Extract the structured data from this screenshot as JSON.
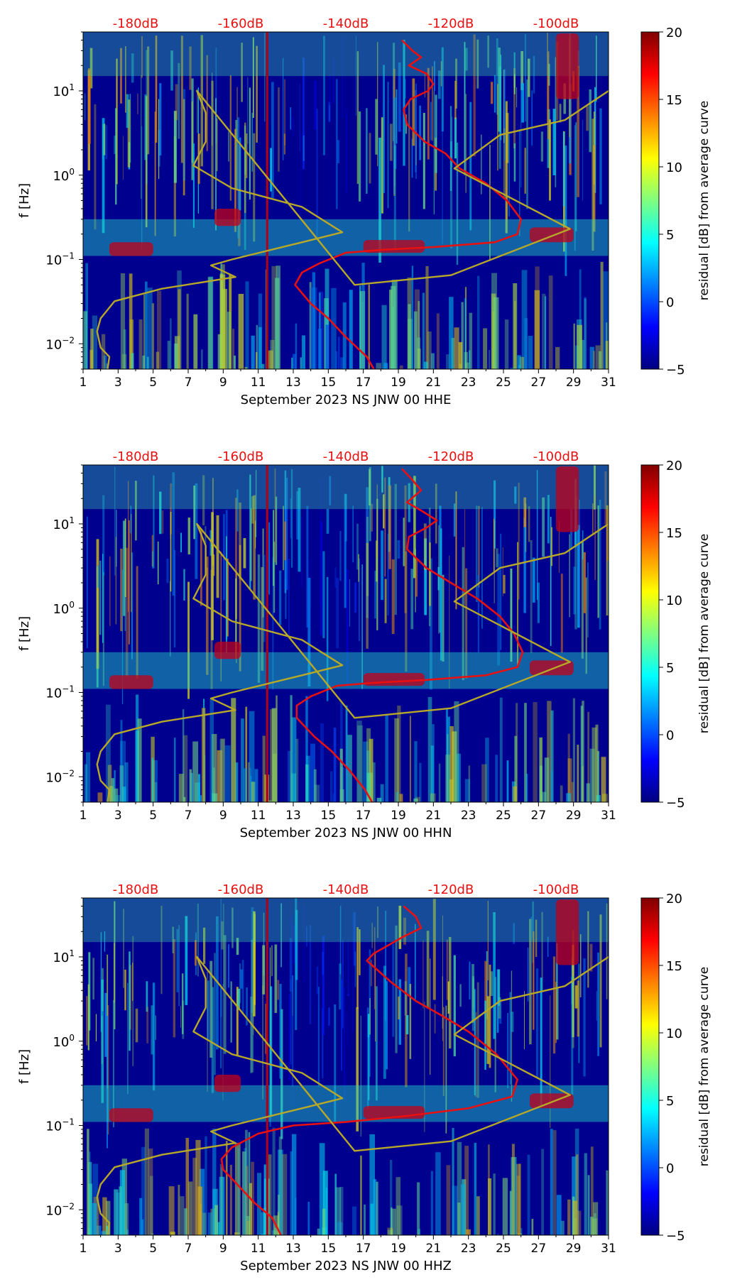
{
  "chart_data": [
    {
      "type": "heatmap",
      "title": "",
      "xlabel": "September 2023 NS JNW 00 HHE",
      "ylabel": "f [Hz]",
      "colorbar_label": "residual [dB] from average curve",
      "colorbar_range": [
        -5,
        20
      ],
      "colorbar_ticks": [
        "20",
        "15",
        "10",
        "5",
        "0",
        "−5"
      ],
      "colorbar_tick_values": [
        20,
        15,
        10,
        5,
        0,
        -5
      ],
      "colormap": "jet",
      "xlim": [
        1,
        31
      ],
      "ylim_hz": [
        0.005,
        50
      ],
      "y_scale": "log",
      "x_ticks": [
        "1",
        "3",
        "5",
        "7",
        "9",
        "11",
        "13",
        "15",
        "17",
        "19",
        "21",
        "23",
        "25",
        "27",
        "29",
        "31"
      ],
      "y_ticks": [
        {
          "base": "10",
          "exp": "1",
          "value": 10
        },
        {
          "base": "10",
          "exp": "0",
          "value": 1
        },
        {
          "base": "10",
          "exp": "−1",
          "value": 0.1
        },
        {
          "base": "10",
          "exp": "−2",
          "value": 0.01
        }
      ],
      "top_db_labels": [
        {
          "label": "-180dB",
          "day": 4
        },
        {
          "label": "-160dB",
          "day": 10
        },
        {
          "label": "-140dB",
          "day": 16
        },
        {
          "label": "-120dB",
          "day": 22
        },
        {
          "label": "-100dB",
          "day": 28
        }
      ],
      "overlay_curves": [
        {
          "name": "red",
          "color": "#e81010",
          "points": [
            [
              19.2,
              40
            ],
            [
              19.8,
              30
            ],
            [
              20.3,
              25
            ],
            [
              19.6,
              20
            ],
            [
              20.6,
              16
            ],
            [
              21.0,
              12
            ],
            [
              20.7,
              10
            ],
            [
              19.7,
              8
            ],
            [
              19.3,
              6
            ],
            [
              19.5,
              4
            ],
            [
              20.5,
              2.5
            ],
            [
              21.7,
              1.8
            ],
            [
              22.5,
              1.2
            ],
            [
              24.0,
              0.8
            ],
            [
              25.2,
              0.5
            ],
            [
              26.0,
              0.3
            ],
            [
              25.8,
              0.2
            ],
            [
              24.5,
              0.16
            ],
            [
              21.0,
              0.14
            ],
            [
              18.0,
              0.13
            ],
            [
              16.0,
              0.12
            ],
            [
              14.5,
              0.09
            ],
            [
              13.5,
              0.07
            ],
            [
              13.1,
              0.05
            ],
            [
              14.0,
              0.03
            ],
            [
              15.0,
              0.02
            ],
            [
              16.0,
              0.012
            ],
            [
              17.2,
              0.007
            ],
            [
              17.6,
              0.005
            ]
          ]
        },
        {
          "name": "gold",
          "color": "#b8a828",
          "points": [
            [
              2.4,
              0.005
            ],
            [
              2.5,
              0.007
            ],
            [
              2.0,
              0.009
            ],
            [
              1.8,
              0.014
            ],
            [
              2.0,
              0.02
            ],
            [
              2.8,
              0.032
            ],
            [
              5.5,
              0.045
            ],
            [
              9.7,
              0.062
            ],
            [
              8.3,
              0.085
            ],
            [
              9.5,
              0.1
            ],
            [
              13.5,
              0.16
            ],
            [
              15.8,
              0.21
            ],
            [
              13.5,
              0.42
            ],
            [
              9.5,
              0.7
            ],
            [
              7.3,
              1.3
            ],
            [
              8.0,
              2.5
            ],
            [
              8.0,
              5.5
            ],
            [
              7.5,
              10
            ],
            [
              16.5,
              0.05
            ],
            [
              22.0,
              0.065
            ],
            [
              28.8,
              0.23
            ],
            [
              22.2,
              1.2
            ],
            [
              24.8,
              3
            ],
            [
              28.5,
              4.5
            ],
            [
              31.0,
              10
            ]
          ]
        }
      ]
    },
    {
      "type": "heatmap",
      "title": "",
      "xlabel": "September 2023 NS JNW 00 HHN",
      "ylabel": "f [Hz]",
      "colorbar_label": "residual [dB] from average curve",
      "colorbar_range": [
        -5,
        20
      ],
      "colorbar_ticks": [
        "20",
        "15",
        "10",
        "5",
        "0",
        "−5"
      ],
      "colorbar_tick_values": [
        20,
        15,
        10,
        5,
        0,
        -5
      ],
      "colormap": "jet",
      "xlim": [
        1,
        31
      ],
      "ylim_hz": [
        0.005,
        50
      ],
      "y_scale": "log",
      "x_ticks": [
        "1",
        "3",
        "5",
        "7",
        "9",
        "11",
        "13",
        "15",
        "17",
        "19",
        "21",
        "23",
        "25",
        "27",
        "29",
        "31"
      ],
      "y_ticks": [
        {
          "base": "10",
          "exp": "1",
          "value": 10
        },
        {
          "base": "10",
          "exp": "0",
          "value": 1
        },
        {
          "base": "10",
          "exp": "−1",
          "value": 0.1
        },
        {
          "base": "10",
          "exp": "−2",
          "value": 0.01
        }
      ],
      "top_db_labels": [
        {
          "label": "-180dB",
          "day": 4
        },
        {
          "label": "-160dB",
          "day": 10
        },
        {
          "label": "-140dB",
          "day": 16
        },
        {
          "label": "-120dB",
          "day": 22
        },
        {
          "label": "-100dB",
          "day": 28
        }
      ],
      "overlay_curves": [
        {
          "name": "red",
          "color": "#e81010",
          "points": [
            [
              19.2,
              45
            ],
            [
              19.7,
              35
            ],
            [
              20.3,
              25
            ],
            [
              19.5,
              18
            ],
            [
              20.4,
              14
            ],
            [
              21.2,
              11
            ],
            [
              20.6,
              9
            ],
            [
              19.6,
              7
            ],
            [
              19.5,
              5
            ],
            [
              20.6,
              3
            ],
            [
              22.0,
              2
            ],
            [
              23.5,
              1.3
            ],
            [
              24.8,
              0.8
            ],
            [
              25.6,
              0.5
            ],
            [
              26.1,
              0.3
            ],
            [
              25.8,
              0.2
            ],
            [
              24.0,
              0.16
            ],
            [
              20.5,
              0.14
            ],
            [
              17.5,
              0.13
            ],
            [
              15.5,
              0.12
            ],
            [
              14.0,
              0.09
            ],
            [
              13.2,
              0.07
            ],
            [
              13.2,
              0.05
            ],
            [
              14.2,
              0.03
            ],
            [
              15.2,
              0.02
            ],
            [
              16.2,
              0.012
            ],
            [
              17.1,
              0.007
            ],
            [
              17.5,
              0.005
            ]
          ]
        },
        {
          "name": "gold",
          "color": "#b8a828",
          "points": [
            [
              2.4,
              0.005
            ],
            [
              2.5,
              0.007
            ],
            [
              2.0,
              0.009
            ],
            [
              1.8,
              0.014
            ],
            [
              2.0,
              0.02
            ],
            [
              2.8,
              0.032
            ],
            [
              5.5,
              0.045
            ],
            [
              9.7,
              0.062
            ],
            [
              8.3,
              0.085
            ],
            [
              9.5,
              0.1
            ],
            [
              13.5,
              0.16
            ],
            [
              15.8,
              0.21
            ],
            [
              13.5,
              0.42
            ],
            [
              9.5,
              0.7
            ],
            [
              7.3,
              1.3
            ],
            [
              8.0,
              2.5
            ],
            [
              8.0,
              5.5
            ],
            [
              7.5,
              10
            ],
            [
              16.5,
              0.05
            ],
            [
              22.0,
              0.065
            ],
            [
              28.8,
              0.23
            ],
            [
              22.2,
              1.2
            ],
            [
              24.8,
              3
            ],
            [
              28.5,
              4.5
            ],
            [
              31.0,
              10
            ]
          ]
        }
      ]
    },
    {
      "type": "heatmap",
      "title": "",
      "xlabel": "September 2023 NS JNW 00 HHZ",
      "ylabel": "f [Hz]",
      "colorbar_label": "residual [dB] from average curve",
      "colorbar_range": [
        -5,
        20
      ],
      "colorbar_ticks": [
        "20",
        "15",
        "10",
        "5",
        "0",
        "−5"
      ],
      "colorbar_tick_values": [
        20,
        15,
        10,
        5,
        0,
        -5
      ],
      "colormap": "jet",
      "xlim": [
        1,
        31
      ],
      "ylim_hz": [
        0.005,
        50
      ],
      "y_scale": "log",
      "x_ticks": [
        "1",
        "3",
        "5",
        "7",
        "9",
        "11",
        "13",
        "15",
        "17",
        "19",
        "21",
        "23",
        "25",
        "27",
        "29",
        "31"
      ],
      "y_ticks": [
        {
          "base": "10",
          "exp": "1",
          "value": 10
        },
        {
          "base": "10",
          "exp": "0",
          "value": 1
        },
        {
          "base": "10",
          "exp": "−1",
          "value": 0.1
        },
        {
          "base": "10",
          "exp": "−2",
          "value": 0.01
        }
      ],
      "top_db_labels": [
        {
          "label": "-180dB",
          "day": 4
        },
        {
          "label": "-160dB",
          "day": 10
        },
        {
          "label": "-140dB",
          "day": 16
        },
        {
          "label": "-120dB",
          "day": 22
        },
        {
          "label": "-100dB",
          "day": 28
        }
      ],
      "overlay_curves": [
        {
          "name": "red",
          "color": "#e81010",
          "points": [
            [
              19.3,
              40
            ],
            [
              20.0,
              30
            ],
            [
              20.3,
              22
            ],
            [
              19.2,
              17
            ],
            [
              18.5,
              14
            ],
            [
              17.6,
              11
            ],
            [
              17.2,
              9
            ],
            [
              17.8,
              7
            ],
            [
              18.6,
              5
            ],
            [
              20.0,
              3
            ],
            [
              21.5,
              2
            ],
            [
              23.0,
              1.3
            ],
            [
              24.6,
              0.7
            ],
            [
              25.8,
              0.35
            ],
            [
              25.5,
              0.22
            ],
            [
              23.0,
              0.16
            ],
            [
              19.5,
              0.13
            ],
            [
              16.0,
              0.11
            ],
            [
              13.0,
              0.1
            ],
            [
              11.0,
              0.08
            ],
            [
              9.5,
              0.055
            ],
            [
              8.9,
              0.04
            ],
            [
              9.0,
              0.03
            ],
            [
              9.8,
              0.02
            ],
            [
              10.8,
              0.012
            ],
            [
              11.8,
              0.008
            ],
            [
              12.3,
              0.005
            ]
          ]
        },
        {
          "name": "gold",
          "color": "#b8a828",
          "points": [
            [
              2.4,
              0.005
            ],
            [
              2.5,
              0.007
            ],
            [
              2.0,
              0.009
            ],
            [
              1.8,
              0.014
            ],
            [
              2.0,
              0.02
            ],
            [
              2.8,
              0.032
            ],
            [
              5.5,
              0.045
            ],
            [
              9.7,
              0.062
            ],
            [
              8.3,
              0.085
            ],
            [
              9.5,
              0.1
            ],
            [
              13.5,
              0.16
            ],
            [
              15.8,
              0.21
            ],
            [
              13.5,
              0.42
            ],
            [
              9.5,
              0.7
            ],
            [
              7.3,
              1.3
            ],
            [
              8.0,
              2.5
            ],
            [
              8.0,
              5.5
            ],
            [
              7.5,
              10
            ],
            [
              16.5,
              0.05
            ],
            [
              22.0,
              0.065
            ],
            [
              28.8,
              0.23
            ],
            [
              22.2,
              1.2
            ],
            [
              24.8,
              3
            ],
            [
              28.5,
              4.5
            ],
            [
              31.0,
              10
            ]
          ]
        }
      ]
    }
  ]
}
